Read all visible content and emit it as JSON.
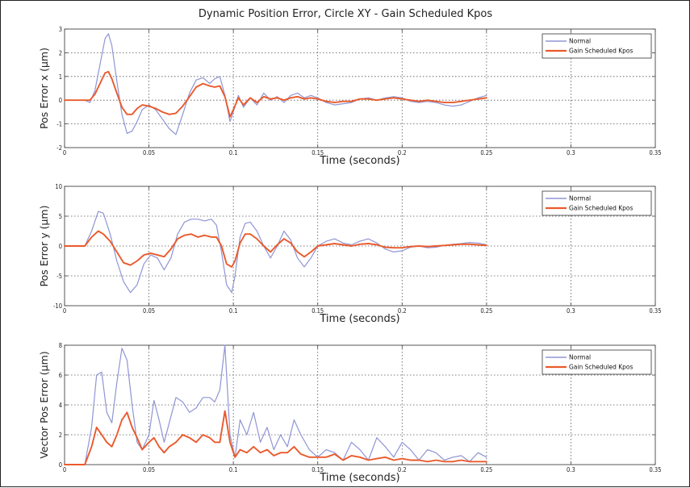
{
  "title": "Dynamic Position Error, Circle XY - Gain Scheduled Kpos",
  "colors": {
    "normal": "#8f95d4",
    "gain": "#ea5a2c"
  },
  "chart_data": [
    {
      "type": "line",
      "title": "",
      "xlabel": "Time (seconds)",
      "ylabel": "Pos Error x (µm)",
      "xlim": [
        0,
        0.35
      ],
      "ylim": [
        -2,
        3
      ],
      "xticks": [
        0,
        0.05,
        0.1,
        0.15,
        0.2,
        0.25,
        0.3,
        0.35
      ],
      "xtick_labels": [
        "0",
        "0.05",
        "0.1",
        "0.15",
        "0.2",
        "0.25",
        "0.3",
        "0.35"
      ],
      "yticks": [
        -2,
        -1,
        0,
        1,
        2,
        3
      ],
      "ytick_labels": [
        "-2",
        "-1",
        "0",
        "1",
        "2",
        "3"
      ],
      "grid": true,
      "legend": "top-right",
      "series": [
        {
          "name": "Normal",
          "x": [
            0,
            0.012,
            0.015,
            0.018,
            0.021,
            0.024,
            0.026,
            0.028,
            0.031,
            0.034,
            0.037,
            0.04,
            0.043,
            0.046,
            0.05,
            0.054,
            0.058,
            0.062,
            0.066,
            0.07,
            0.074,
            0.078,
            0.082,
            0.086,
            0.089,
            0.092,
            0.095,
            0.098,
            0.1,
            0.103,
            0.106,
            0.11,
            0.114,
            0.118,
            0.122,
            0.126,
            0.13,
            0.134,
            0.138,
            0.142,
            0.146,
            0.15,
            0.155,
            0.16,
            0.165,
            0.17,
            0.175,
            0.18,
            0.185,
            0.19,
            0.195,
            0.2,
            0.205,
            0.21,
            0.215,
            0.22,
            0.225,
            0.23,
            0.235,
            0.24,
            0.245,
            0.25
          ],
          "y": [
            0,
            0,
            -0.1,
            0.4,
            1.5,
            2.6,
            2.8,
            2.3,
            0.8,
            -0.6,
            -1.4,
            -1.3,
            -0.9,
            -0.4,
            -0.2,
            -0.4,
            -0.8,
            -1.2,
            -1.45,
            -0.6,
            0.3,
            0.85,
            0.95,
            0.7,
            0.9,
            1.0,
            0.2,
            -0.9,
            -0.5,
            0.2,
            -0.3,
            0.1,
            -0.2,
            0.3,
            0.0,
            0.15,
            -0.1,
            0.2,
            0.3,
            0.1,
            0.2,
            0.1,
            -0.1,
            -0.2,
            -0.15,
            -0.1,
            0.05,
            0.1,
            0.0,
            0.1,
            0.15,
            0.1,
            -0.05,
            -0.1,
            -0.05,
            -0.1,
            -0.2,
            -0.25,
            -0.2,
            -0.05,
            0.1,
            0.2
          ]
        },
        {
          "name": "Gain Scheduled Kpos",
          "x": [
            0,
            0.012,
            0.015,
            0.018,
            0.021,
            0.024,
            0.026,
            0.028,
            0.031,
            0.034,
            0.037,
            0.04,
            0.043,
            0.046,
            0.05,
            0.054,
            0.058,
            0.062,
            0.066,
            0.07,
            0.074,
            0.078,
            0.082,
            0.086,
            0.089,
            0.092,
            0.095,
            0.098,
            0.1,
            0.103,
            0.106,
            0.11,
            0.114,
            0.118,
            0.122,
            0.126,
            0.13,
            0.134,
            0.138,
            0.142,
            0.146,
            0.15,
            0.155,
            0.16,
            0.165,
            0.17,
            0.175,
            0.18,
            0.185,
            0.19,
            0.195,
            0.2,
            0.205,
            0.21,
            0.215,
            0.22,
            0.225,
            0.23,
            0.235,
            0.24,
            0.245,
            0.25
          ],
          "y": [
            0,
            0,
            0,
            0.25,
            0.7,
            1.15,
            1.2,
            0.9,
            0.3,
            -0.3,
            -0.6,
            -0.6,
            -0.35,
            -0.2,
            -0.25,
            -0.35,
            -0.5,
            -0.6,
            -0.55,
            -0.25,
            0.15,
            0.55,
            0.7,
            0.6,
            0.55,
            0.6,
            0.15,
            -0.7,
            -0.4,
            0.1,
            -0.2,
            0.1,
            -0.1,
            0.15,
            0.05,
            0.1,
            0.0,
            0.1,
            0.15,
            0.05,
            0.1,
            0.05,
            -0.05,
            -0.1,
            -0.05,
            -0.05,
            0.05,
            0.05,
            0.0,
            0.05,
            0.1,
            0.05,
            0.0,
            -0.05,
            0.0,
            -0.05,
            -0.1,
            -0.1,
            -0.05,
            0.0,
            0.05,
            0.1
          ]
        }
      ]
    },
    {
      "type": "line",
      "title": "",
      "xlabel": "Time (seconds)",
      "ylabel": "Pos Error y (µm)",
      "xlim": [
        0,
        0.35
      ],
      "ylim": [
        -10,
        10
      ],
      "xticks": [
        0,
        0.05,
        0.1,
        0.15,
        0.2,
        0.25,
        0.3,
        0.35
      ],
      "xtick_labels": [
        "0",
        "0.05",
        "0.1",
        "0.15",
        "0.2",
        "0.25",
        "0.3",
        "0.35"
      ],
      "yticks": [
        -10,
        -5,
        0,
        5,
        10
      ],
      "ytick_labels": [
        "-10",
        "-5",
        "0",
        "5",
        "10"
      ],
      "grid": true,
      "legend": "top-right",
      "series": [
        {
          "name": "Normal",
          "x": [
            0,
            0.012,
            0.016,
            0.02,
            0.023,
            0.027,
            0.031,
            0.035,
            0.039,
            0.043,
            0.047,
            0.051,
            0.055,
            0.059,
            0.063,
            0.067,
            0.071,
            0.075,
            0.079,
            0.083,
            0.087,
            0.09,
            0.093,
            0.096,
            0.099,
            0.101,
            0.104,
            0.107,
            0.11,
            0.114,
            0.118,
            0.122,
            0.126,
            0.13,
            0.134,
            0.138,
            0.142,
            0.146,
            0.15,
            0.155,
            0.16,
            0.165,
            0.17,
            0.175,
            0.18,
            0.185,
            0.19,
            0.195,
            0.2,
            0.205,
            0.21,
            0.215,
            0.22,
            0.225,
            0.23,
            0.235,
            0.24,
            0.245,
            0.25
          ],
          "y": [
            0,
            0,
            2.5,
            5.8,
            5.5,
            2.0,
            -2.5,
            -6.0,
            -7.8,
            -6.5,
            -3.0,
            -1.5,
            -2.0,
            -4.0,
            -2.0,
            2.0,
            4.0,
            4.5,
            4.5,
            4.2,
            4.5,
            3.5,
            -1.0,
            -6.5,
            -7.8,
            -5.0,
            1.5,
            3.8,
            4.0,
            2.5,
            0.0,
            -2.0,
            0.0,
            2.5,
            1.0,
            -2.0,
            -3.5,
            -2.0,
            0.0,
            0.8,
            1.2,
            0.5,
            0.2,
            0.8,
            1.2,
            0.5,
            -0.5,
            -1.0,
            -0.8,
            -0.2,
            0.0,
            -0.3,
            -0.2,
            0.1,
            0.3,
            0.4,
            0.6,
            0.5,
            0.2
          ]
        },
        {
          "name": "Gain Scheduled Kpos",
          "x": [
            0,
            0.012,
            0.016,
            0.02,
            0.023,
            0.027,
            0.031,
            0.035,
            0.039,
            0.043,
            0.047,
            0.051,
            0.055,
            0.059,
            0.063,
            0.067,
            0.071,
            0.075,
            0.079,
            0.083,
            0.087,
            0.09,
            0.093,
            0.096,
            0.099,
            0.101,
            0.104,
            0.107,
            0.11,
            0.114,
            0.118,
            0.122,
            0.126,
            0.13,
            0.134,
            0.138,
            0.142,
            0.146,
            0.15,
            0.155,
            0.16,
            0.165,
            0.17,
            0.175,
            0.18,
            0.185,
            0.19,
            0.195,
            0.2,
            0.205,
            0.21,
            0.215,
            0.22,
            0.225,
            0.23,
            0.235,
            0.24,
            0.245,
            0.25
          ],
          "y": [
            0,
            0,
            1.5,
            2.5,
            2.0,
            0.8,
            -1.0,
            -2.8,
            -3.2,
            -2.5,
            -1.5,
            -1.2,
            -1.5,
            -1.8,
            -0.5,
            1.2,
            1.8,
            2.0,
            1.5,
            1.8,
            1.5,
            1.5,
            0.0,
            -3.0,
            -3.5,
            -2.5,
            0.5,
            2.0,
            2.0,
            1.2,
            0.0,
            -1.0,
            0.2,
            1.2,
            0.5,
            -1.0,
            -1.8,
            -1.0,
            0.0,
            0.2,
            0.4,
            0.2,
            0.0,
            0.3,
            0.4,
            0.2,
            -0.2,
            -0.3,
            -0.3,
            -0.1,
            0.0,
            -0.1,
            0.0,
            0.1,
            0.2,
            0.3,
            0.3,
            0.2,
            0.1
          ]
        }
      ]
    },
    {
      "type": "line",
      "title": "",
      "xlabel": "Time (seconds)",
      "ylabel": "Vector Pos Error (µm)",
      "xlim": [
        0,
        0.35
      ],
      "ylim": [
        0,
        8
      ],
      "xticks": [
        0,
        0.05,
        0.1,
        0.15,
        0.2,
        0.25,
        0.3,
        0.35
      ],
      "xtick_labels": [
        "0",
        "0.05",
        "0.1",
        "0.15",
        "0.2",
        "0.25",
        "0.3",
        "0.35"
      ],
      "yticks": [
        0,
        2,
        4,
        6,
        8
      ],
      "ytick_labels": [
        "0",
        "2",
        "4",
        "6",
        "8"
      ],
      "grid": true,
      "legend": "top-right",
      "series": [
        {
          "name": "Normal",
          "x": [
            0,
            0.012,
            0.016,
            0.019,
            0.022,
            0.025,
            0.028,
            0.031,
            0.034,
            0.037,
            0.04,
            0.043,
            0.046,
            0.05,
            0.053,
            0.056,
            0.059,
            0.062,
            0.066,
            0.07,
            0.074,
            0.078,
            0.082,
            0.086,
            0.089,
            0.092,
            0.095,
            0.098,
            0.101,
            0.104,
            0.108,
            0.112,
            0.116,
            0.12,
            0.124,
            0.128,
            0.132,
            0.136,
            0.14,
            0.145,
            0.15,
            0.155,
            0.16,
            0.165,
            0.17,
            0.175,
            0.18,
            0.185,
            0.19,
            0.195,
            0.2,
            0.205,
            0.21,
            0.215,
            0.22,
            0.225,
            0.23,
            0.235,
            0.24,
            0.245,
            0.25
          ],
          "y": [
            0,
            0,
            2.5,
            6.0,
            6.2,
            3.5,
            2.8,
            5.5,
            7.8,
            7.0,
            4.0,
            1.5,
            1.0,
            2.0,
            4.3,
            3.0,
            1.5,
            2.8,
            4.5,
            4.2,
            3.5,
            3.8,
            4.5,
            4.5,
            4.2,
            5.0,
            8.0,
            2.0,
            0.5,
            3.0,
            2.0,
            3.5,
            1.5,
            2.5,
            1.0,
            2.0,
            1.2,
            3.0,
            2.0,
            1.0,
            0.5,
            1.0,
            0.8,
            0.3,
            1.5,
            1.0,
            0.3,
            1.8,
            1.2,
            0.5,
            1.5,
            1.0,
            0.3,
            1.0,
            0.8,
            0.3,
            0.5,
            0.6,
            0.2,
            0.8,
            0.5
          ]
        },
        {
          "name": "Gain Scheduled Kpos",
          "x": [
            0,
            0.012,
            0.016,
            0.019,
            0.022,
            0.025,
            0.028,
            0.031,
            0.034,
            0.037,
            0.04,
            0.043,
            0.046,
            0.05,
            0.053,
            0.056,
            0.059,
            0.062,
            0.066,
            0.07,
            0.074,
            0.078,
            0.082,
            0.086,
            0.089,
            0.092,
            0.095,
            0.098,
            0.101,
            0.104,
            0.108,
            0.112,
            0.116,
            0.12,
            0.124,
            0.128,
            0.132,
            0.136,
            0.14,
            0.145,
            0.15,
            0.155,
            0.16,
            0.165,
            0.17,
            0.175,
            0.18,
            0.185,
            0.19,
            0.195,
            0.2,
            0.205,
            0.21,
            0.215,
            0.22,
            0.225,
            0.23,
            0.235,
            0.24,
            0.245,
            0.25
          ],
          "y": [
            0,
            0,
            1.2,
            2.5,
            2.0,
            1.5,
            1.2,
            2.0,
            3.0,
            3.5,
            2.5,
            1.8,
            1.0,
            1.5,
            1.8,
            1.2,
            0.8,
            1.2,
            1.5,
            2.0,
            1.8,
            1.5,
            2.0,
            1.8,
            1.5,
            1.5,
            3.6,
            1.5,
            0.5,
            1.0,
            0.8,
            1.2,
            0.8,
            1.0,
            0.6,
            0.8,
            0.8,
            1.2,
            0.7,
            0.5,
            0.5,
            0.5,
            0.7,
            0.3,
            0.6,
            0.5,
            0.3,
            0.4,
            0.5,
            0.3,
            0.4,
            0.3,
            0.3,
            0.2,
            0.3,
            0.2,
            0.2,
            0.3,
            0.2,
            0.2,
            0.2
          ]
        }
      ]
    }
  ]
}
